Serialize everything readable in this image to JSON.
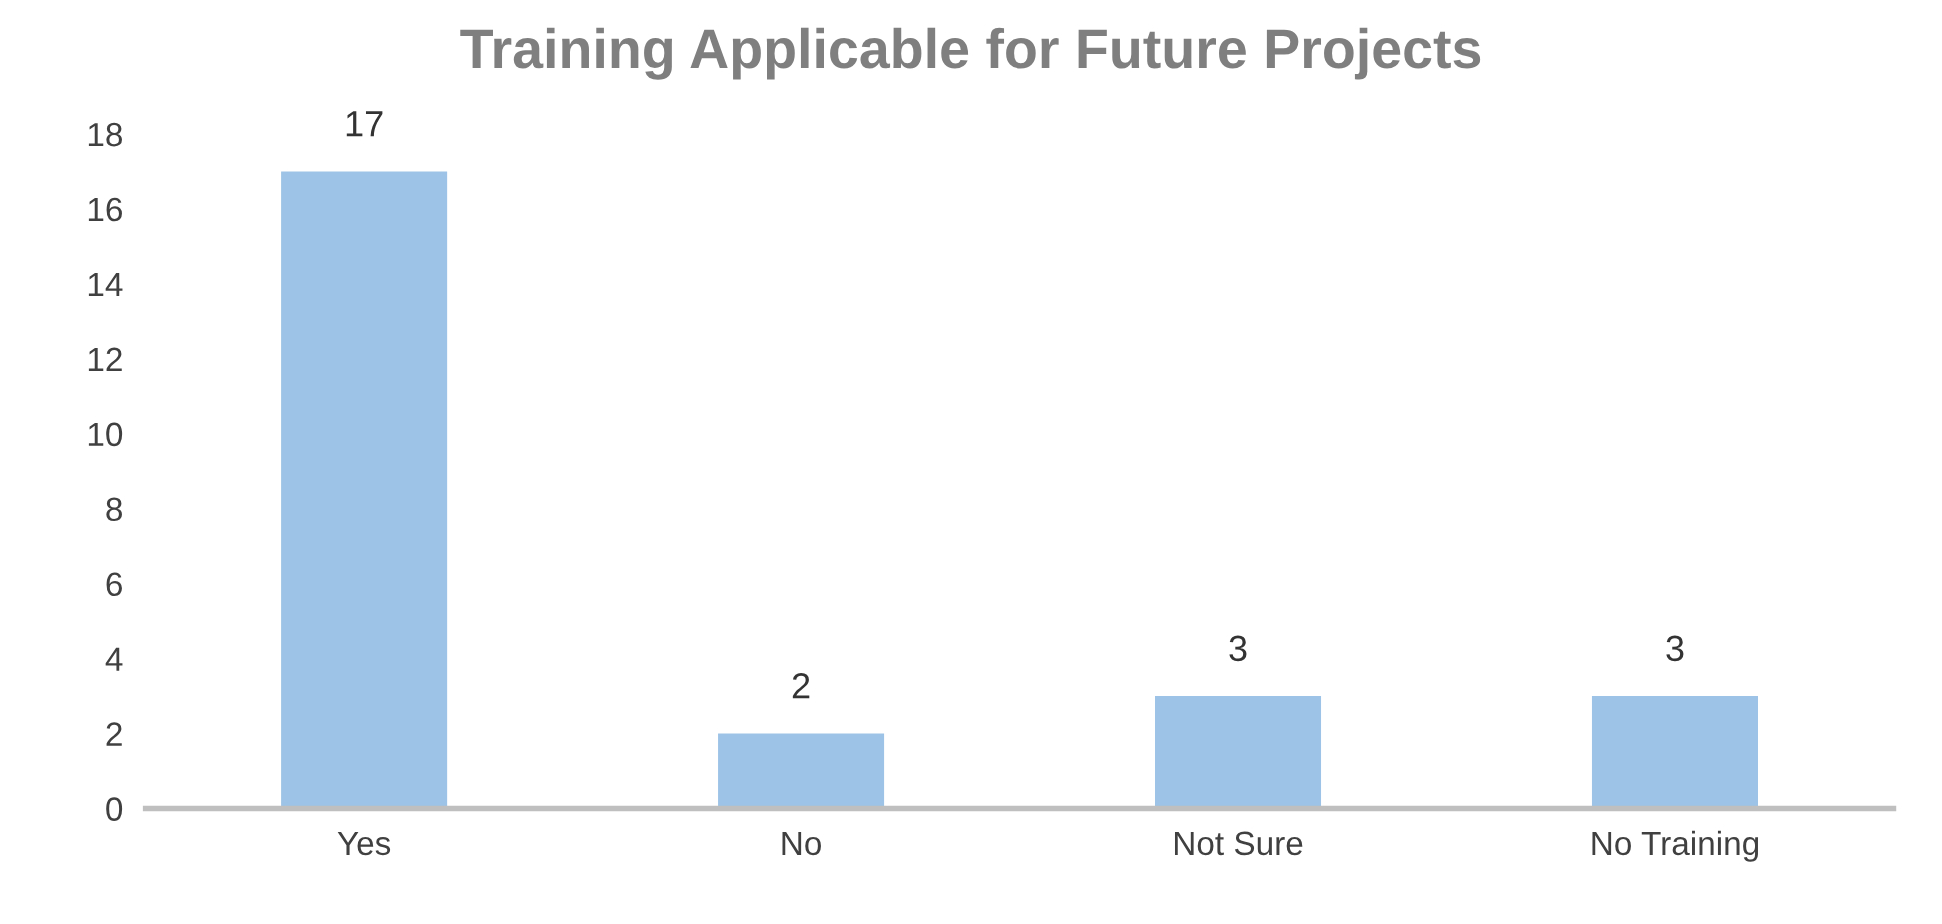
{
  "chart_data": {
    "type": "bar",
    "title": "Training Applicable for Future Projects",
    "categories": [
      "Yes",
      "No",
      "Not Sure",
      "No Training"
    ],
    "values": [
      17,
      2,
      3,
      3
    ],
    "color": "#9dc3e6",
    "ylim": [
      0,
      18
    ],
    "yticks": [
      0,
      2,
      4,
      6,
      8,
      10,
      12,
      14,
      16,
      18
    ],
    "data_labels": true,
    "grid": false,
    "legend": false
  }
}
